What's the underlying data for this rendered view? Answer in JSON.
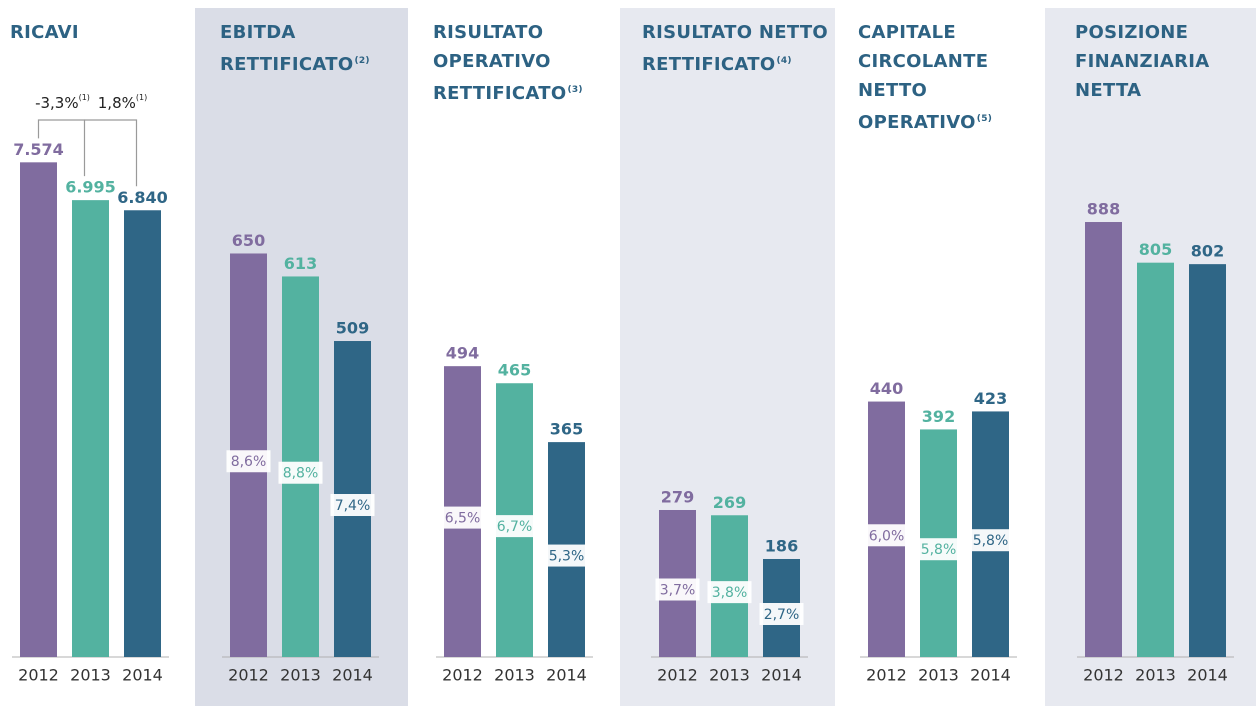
{
  "chart_data": [
    {
      "type": "bar",
      "title": "RICAVI",
      "categories": [
        "2012",
        "2013",
        "2014"
      ],
      "values": [
        7574,
        6995,
        6840
      ],
      "value_labels": [
        "7.574",
        "6.995",
        "6.840"
      ],
      "annotations": [
        {
          "text": "-3,3%",
          "note": "(1)"
        },
        {
          "text": "1,8%",
          "note": "(1)"
        }
      ],
      "colors": [
        "#806c9f",
        "#53b2a0",
        "#2f6686"
      ],
      "background": "#ffffff",
      "ylim": [
        0,
        9600
      ]
    },
    {
      "type": "bar",
      "title": "EBITDA RETTIFICATO",
      "note": "(2)",
      "categories": [
        "2012",
        "2013",
        "2014"
      ],
      "values": [
        650,
        613,
        509
      ],
      "margins": [
        8.6,
        8.8,
        7.4
      ],
      "margin_labels": [
        "8,6%",
        "8,8%",
        "7,4%"
      ],
      "colors": [
        "#806c9f",
        "#53b2a0",
        "#2f6686"
      ],
      "background": "#dadde7",
      "ylim": [
        0,
        1010
      ]
    },
    {
      "type": "bar",
      "title": "RISULTATO OPERATIVO RETTIFICATO",
      "note": "(3)",
      "categories": [
        "2012",
        "2013",
        "2014"
      ],
      "values": [
        494,
        465,
        365
      ],
      "margins": [
        6.5,
        6.7,
        5.3
      ],
      "margin_labels": [
        "6,5%",
        "6,7%",
        "5,3%"
      ],
      "colors": [
        "#806c9f",
        "#53b2a0",
        "#2f6686"
      ],
      "background": "#ffffff",
      "ylim": [
        0,
        1065
      ]
    },
    {
      "type": "bar",
      "title": "RISULTATO NETTO RETTIFICATO",
      "note": "(4)",
      "categories": [
        "2012",
        "2013",
        "2014"
      ],
      "values": [
        279,
        269,
        186
      ],
      "margins": [
        3.7,
        3.8,
        2.7
      ],
      "margin_labels": [
        "3,7%",
        "3,8%",
        "2,7%"
      ],
      "colors": [
        "#806c9f",
        "#53b2a0",
        "#2f6686"
      ],
      "background": "#e7e9f0",
      "ylim": [
        0,
        1190
      ]
    },
    {
      "type": "bar",
      "title": "CAPITALE CIRCOLANTE NETTO OPERATIVO",
      "note": "(5)",
      "categories": [
        "2012",
        "2013",
        "2014"
      ],
      "values": [
        440,
        392,
        423
      ],
      "margins": [
        6.0,
        5.8,
        5.8
      ],
      "margin_labels": [
        "6,0%",
        "5,8%",
        "5,8%"
      ],
      "colors": [
        "#806c9f",
        "#53b2a0",
        "#2f6686"
      ],
      "background": "#ffffff",
      "ylim": [
        0,
        1080
      ]
    },
    {
      "type": "bar",
      "title": "POSIZIONE FINANZIARIA NETTA",
      "categories": [
        "2012",
        "2013",
        "2014"
      ],
      "values": [
        888,
        805,
        802
      ],
      "colors": [
        "#806c9f",
        "#53b2a0",
        "#2f6686"
      ],
      "background": "#e7e9f0",
      "ylim": [
        0,
        1280
      ]
    }
  ]
}
